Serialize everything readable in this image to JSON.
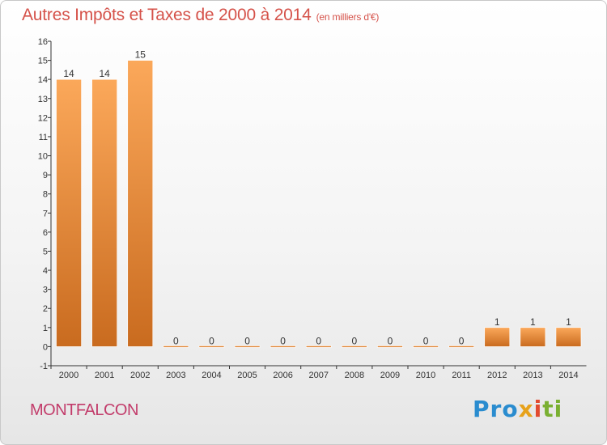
{
  "title": "Autres Impôts et Taxes de 2000 à 2014",
  "subtitle": "(en milliers d'€)",
  "location": "MONTFALCON",
  "logo": {
    "p1": "Pro",
    "p2": "x",
    "p3": "i",
    "p4": "ti"
  },
  "colors": {
    "bar_top": "#fba85a",
    "bar_bottom": "#c96b1f",
    "title": "#d5524a",
    "location": "#c23b6a"
  },
  "chart_data": {
    "type": "bar",
    "categories": [
      "2000",
      "2001",
      "2002",
      "2003",
      "2004",
      "2005",
      "2006",
      "2007",
      "2008",
      "2009",
      "2010",
      "2011",
      "2012",
      "2013",
      "2014"
    ],
    "values": [
      14,
      14,
      15,
      0,
      0,
      0,
      0,
      0,
      0,
      0,
      0,
      0,
      1,
      1,
      1
    ],
    "data_labels": [
      "14",
      "14",
      "15",
      "0",
      "0",
      "0",
      "0",
      "0",
      "0",
      "0",
      "0",
      "0",
      "1",
      "1",
      "1"
    ],
    "yticks": [
      "-1",
      "0",
      "1",
      "2",
      "3",
      "4",
      "5",
      "6",
      "7",
      "8",
      "9",
      "10",
      "11",
      "12",
      "13",
      "14",
      "15",
      "16"
    ],
    "ylim": [
      -1,
      16
    ],
    "grid": false,
    "legend": "none"
  }
}
